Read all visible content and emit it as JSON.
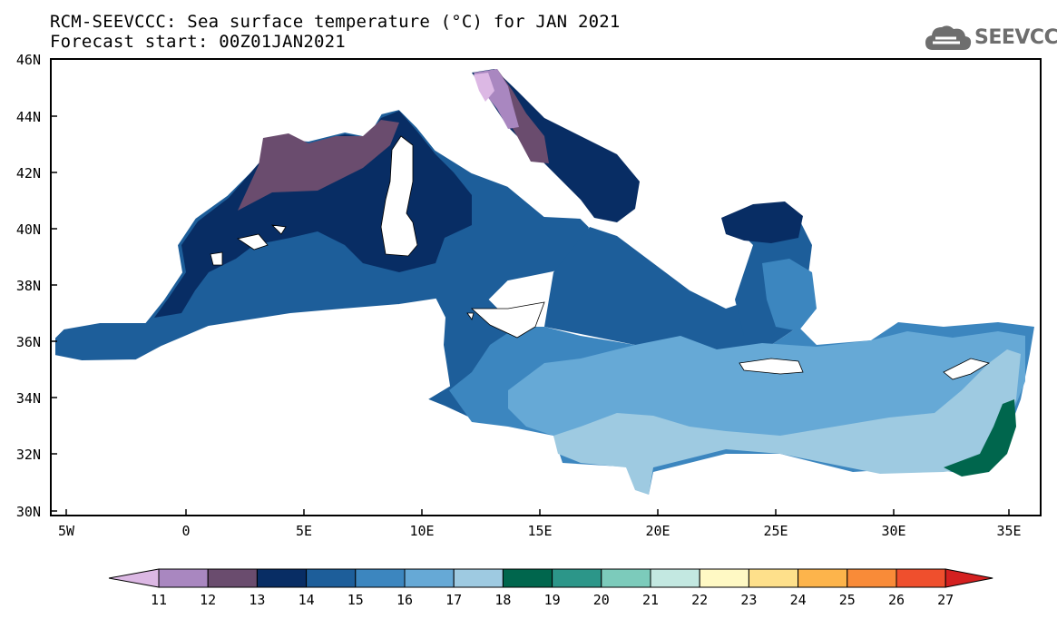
{
  "title": {
    "line1": "RCM-SEEVCCC: Sea surface temperature (°C) for JAN 2021",
    "line2": "Forecast start: 00Z01JAN2021"
  },
  "logo": {
    "text": "SEEVCCC",
    "icon": "cloud-icon"
  },
  "map": {
    "lon_range": [
      -5.5,
      36.5
    ],
    "lat_range": [
      30,
      46
    ],
    "lat_ticks": [
      "46N",
      "44N",
      "42N",
      "40N",
      "38N",
      "36N",
      "34N",
      "32N",
      "30N"
    ],
    "lon_ticks": [
      "5W",
      "0",
      "5E",
      "10E",
      "15E",
      "20E",
      "25E",
      "30E",
      "35E"
    ],
    "field_range_degC": [
      12,
      19
    ]
  },
  "colorbar": {
    "labels": [
      "11",
      "12",
      "13",
      "14",
      "15",
      "16",
      "17",
      "18",
      "19",
      "20",
      "21",
      "22",
      "23",
      "24",
      "25",
      "26",
      "27"
    ],
    "colors": [
      "#dcb8e4",
      "#a987c0",
      "#6a4c6e",
      "#082d64",
      "#1d5e9a",
      "#3c86bf",
      "#66a9d6",
      "#9ecae1",
      "#00664d",
      "#2c9689",
      "#7ccbbb",
      "#c3e8e1",
      "#fff9c4",
      "#fee08b",
      "#fdb44b",
      "#f98b38",
      "#ef4f2d",
      "#d42020"
    ]
  }
}
